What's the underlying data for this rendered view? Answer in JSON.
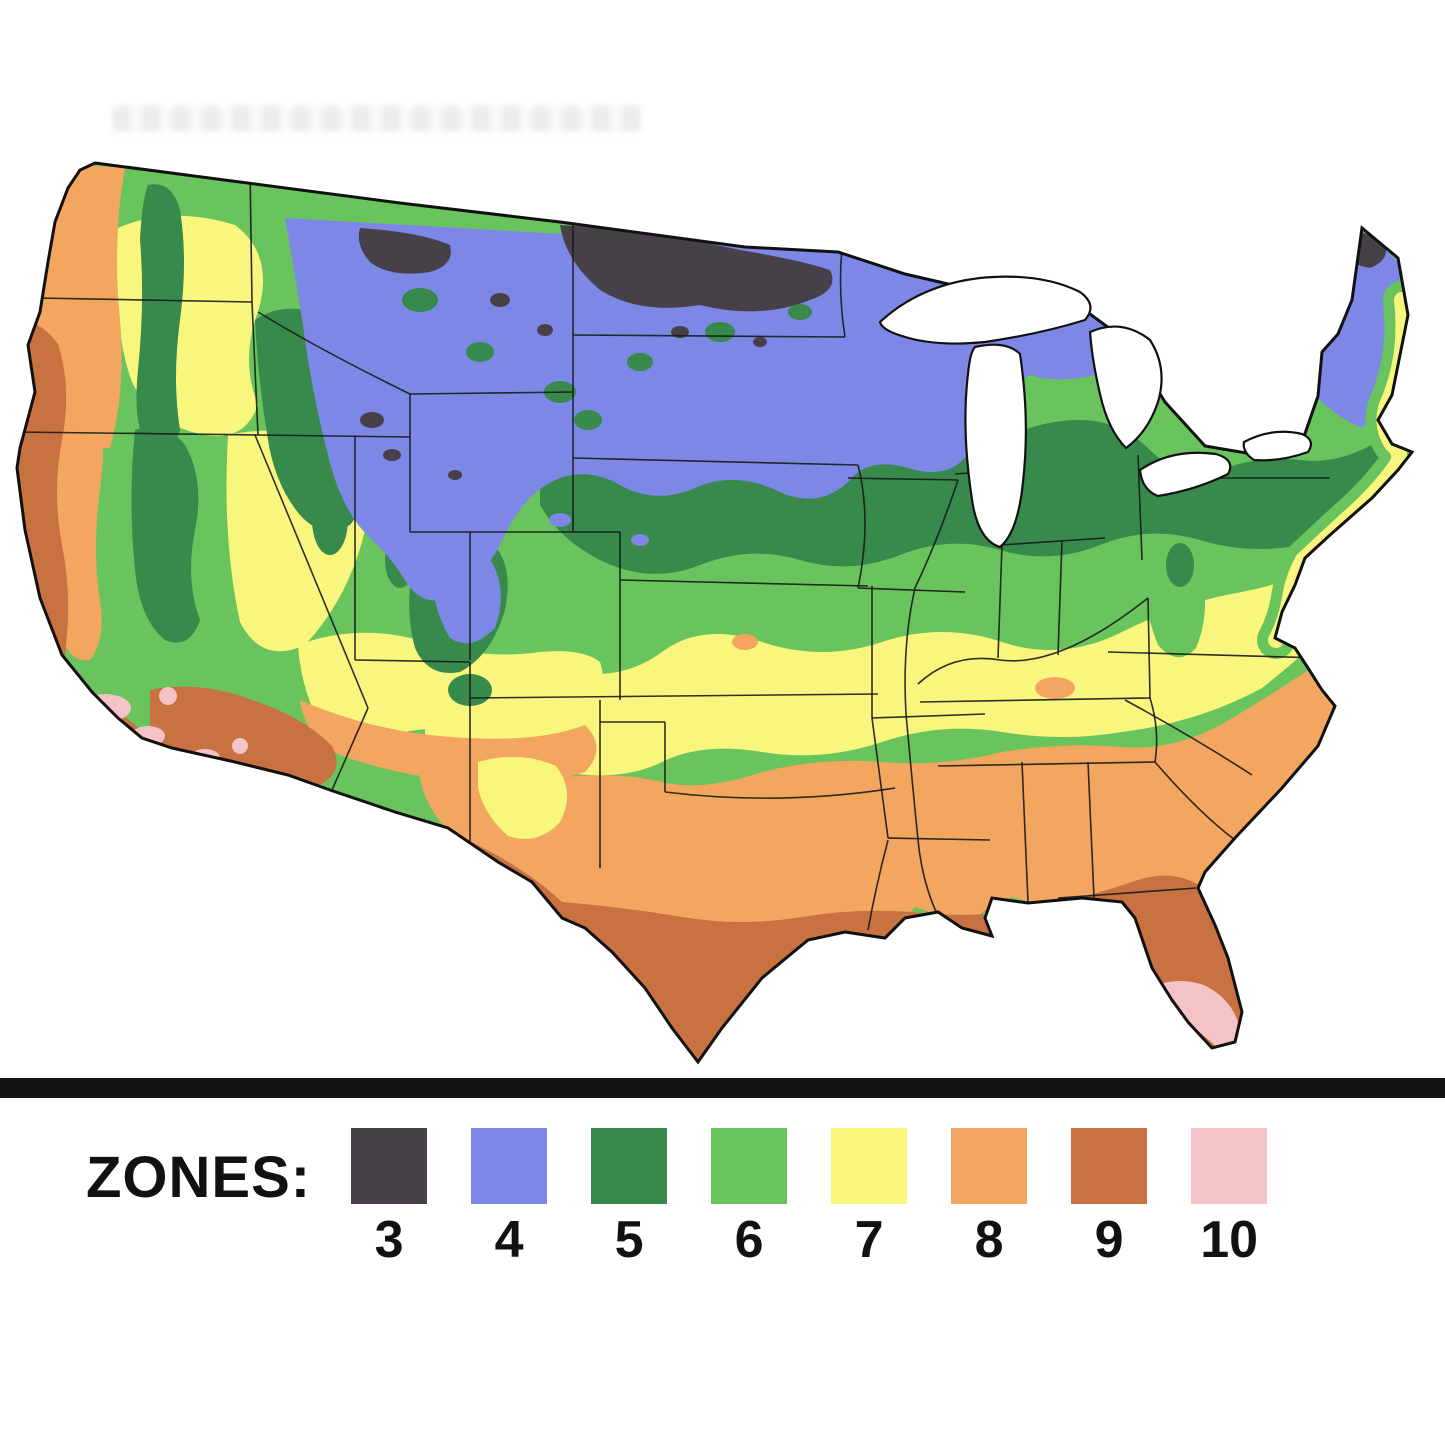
{
  "map": {
    "region": "United States",
    "description": "Plant hardiness growing zones map of the contiguous United States",
    "colors": {
      "ink": "#111111",
      "background": "#ffffff",
      "state_line": "#1a1a1a"
    },
    "legend": {
      "label": "ZONES:",
      "zones": [
        {
          "zone": "3",
          "color": "#474049"
        },
        {
          "zone": "4",
          "color": "#7d88e6"
        },
        {
          "zone": "5",
          "color": "#37894c"
        },
        {
          "zone": "6",
          "color": "#69c45e"
        },
        {
          "zone": "7",
          "color": "#f8f67d"
        },
        {
          "zone": "8",
          "color": "#f2a65f"
        },
        {
          "zone": "9",
          "color": "#c87141"
        },
        {
          "zone": "10",
          "color": "#f4c3c8"
        }
      ]
    }
  }
}
